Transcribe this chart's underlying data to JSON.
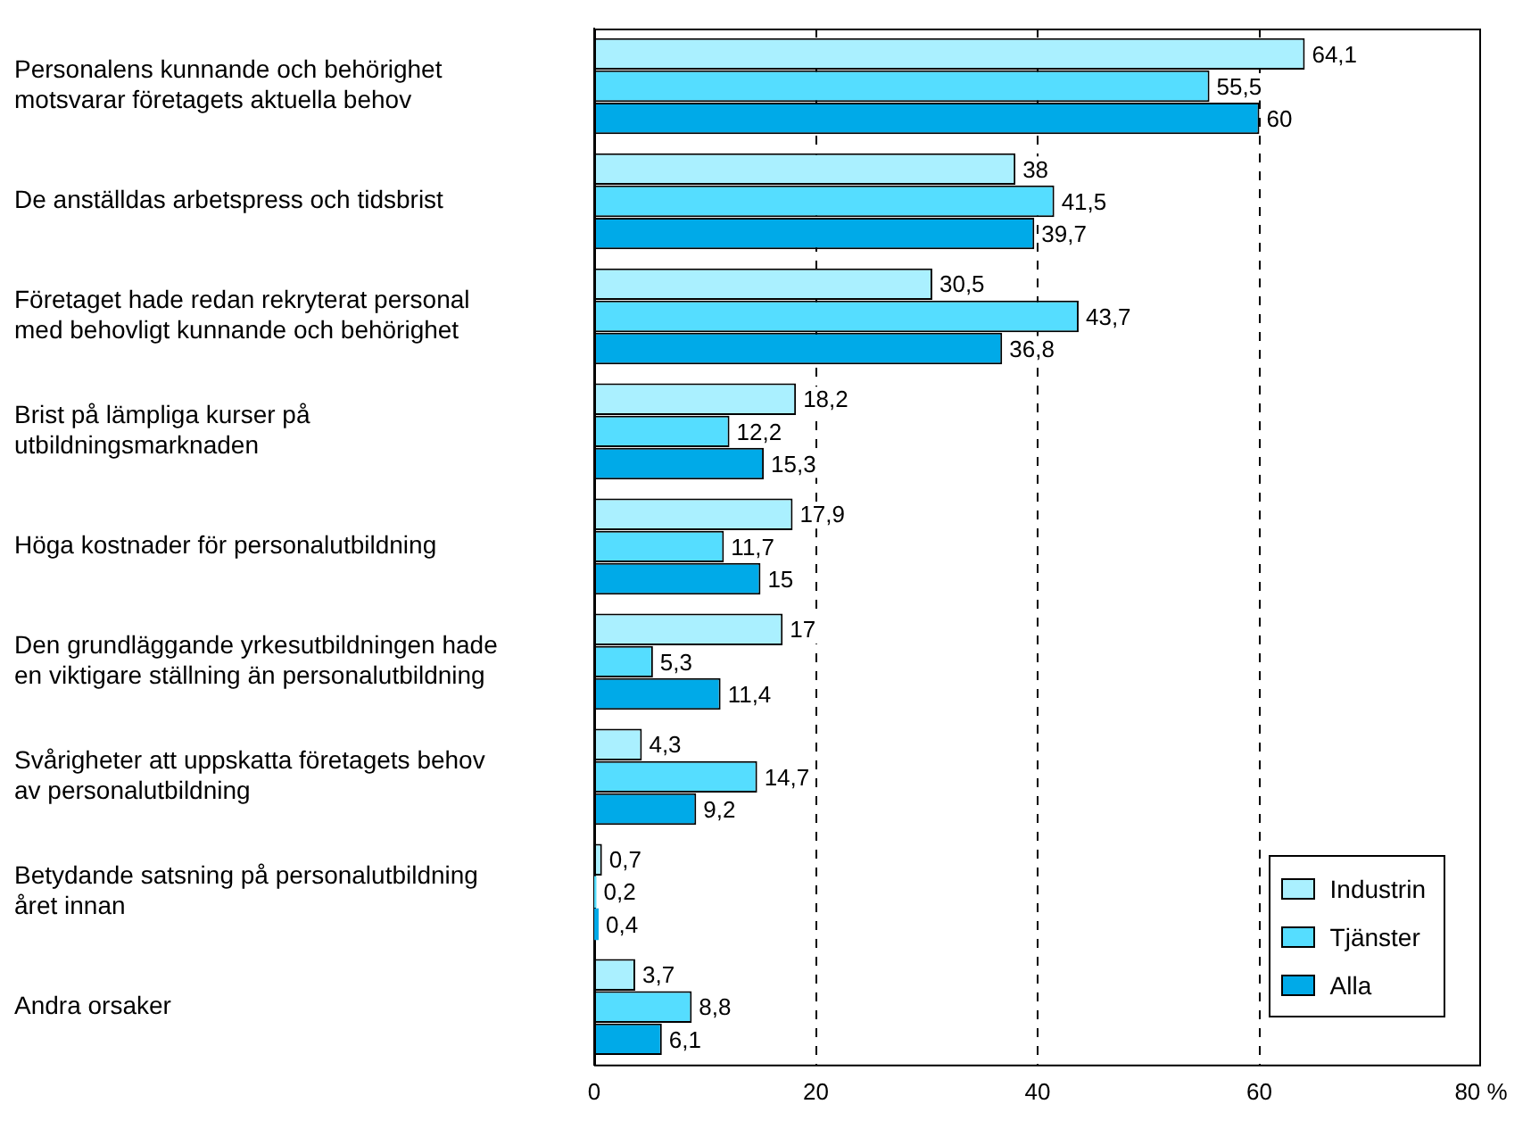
{
  "chart_data": {
    "type": "bar",
    "orientation": "horizontal",
    "categories": [
      "Personalens kunnande och behörighet motsvarar företagets aktuella behov",
      "De anställdas arbetspress och tidsbrist",
      "Företaget hade redan rekryterat personal med behovligt kunnande och behörighet",
      "Brist på lämpliga kurser på utbildningsmarknaden",
      "Höga kostnader för personalutbildning",
      "Den grundläggande yrkesutbildningen hade en viktigare ställning än personalutbildning",
      "Svårigheter att uppskatta företagets behov av personalutbildning",
      "Betydande satsning på personalutbildning året innan",
      "Andra orsaker"
    ],
    "series": [
      {
        "name": "Industrin",
        "color": "#aaf0ff",
        "values": [
          64.1,
          38,
          30.5,
          18.2,
          17.9,
          17,
          4.3,
          0.7,
          3.7
        ],
        "value_labels": [
          "64,1",
          "38",
          "30,5",
          "18,2",
          "17,9",
          "17",
          "4,3",
          "0,7",
          "3,7"
        ]
      },
      {
        "name": "Tjänster",
        "color": "#55ddff",
        "values": [
          55.5,
          41.5,
          43.7,
          12.2,
          11.7,
          5.3,
          14.7,
          0.2,
          8.8
        ],
        "value_labels": [
          "55,5",
          "41,5",
          "43,7",
          "12,2",
          "11,7",
          "5,3",
          "14,7",
          "0,2",
          "8,8"
        ]
      },
      {
        "name": "Alla",
        "color": "#00aae8",
        "values": [
          60,
          39.7,
          36.8,
          15.3,
          15,
          11.4,
          9.2,
          0.4,
          6.1
        ],
        "value_labels": [
          "60",
          "39,7",
          "36,8",
          "15,3",
          "15",
          "11,4",
          "9,2",
          "0,4",
          "6,1"
        ]
      }
    ],
    "xlim": [
      0,
      80
    ],
    "xticks": [
      0,
      20,
      40,
      60,
      {
        "value": 80,
        "label": "80 %"
      }
    ],
    "grid": "x",
    "legend": "bottom right"
  }
}
